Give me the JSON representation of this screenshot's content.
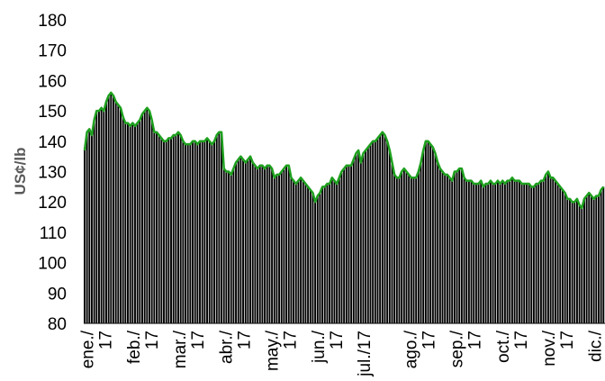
{
  "chart_data": {
    "type": "bar",
    "ylabel": "US¢/lb",
    "ylim": [
      80,
      180
    ],
    "yticks": [
      "80",
      "90",
      "100",
      "110",
      "120",
      "130",
      "140",
      "150",
      "160",
      "170",
      "180"
    ],
    "xticks": [
      "ene./ 17",
      "feb./ 17",
      "mar./ 17",
      "abr./ 17",
      "may./ 17",
      "jun./ 17",
      "jul./17",
      "ago./ 17",
      "sep./ 17",
      "oct./ 17",
      "nov./ 17",
      "dic./ 17"
    ],
    "grid": false,
    "legend": "none",
    "colors": {
      "bars": "#000000",
      "line": "#1ea01e",
      "axis_title": "#595959"
    },
    "series": [
      {
        "values": [
          137,
          143,
          144,
          142,
          147,
          150,
          150,
          151,
          150,
          153,
          155,
          156,
          155,
          153,
          152,
          151,
          148,
          146,
          146,
          145,
          146,
          145,
          146,
          147,
          149,
          150,
          151,
          150,
          147,
          143,
          143,
          142,
          141,
          140,
          140,
          141,
          141,
          142,
          142,
          143,
          142,
          140,
          139,
          139,
          139,
          140,
          140,
          139,
          140,
          140,
          140,
          141,
          140,
          139,
          140,
          142,
          143,
          143,
          131,
          130,
          130,
          129,
          131,
          133,
          134,
          135,
          134,
          133,
          134,
          135,
          133,
          132,
          131,
          132,
          132,
          131,
          132,
          132,
          131,
          128,
          129,
          129,
          130,
          131,
          132,
          132,
          128,
          127,
          126,
          127,
          128,
          127,
          126,
          125,
          124,
          123,
          120,
          122,
          123,
          125,
          125,
          126,
          126,
          128,
          127,
          126,
          128,
          130,
          131,
          132,
          132,
          132,
          134,
          136,
          137,
          133,
          136,
          137,
          138,
          139,
          140,
          140,
          141,
          142,
          143,
          142,
          140,
          137,
          133,
          129,
          128,
          128,
          130,
          131,
          130,
          129,
          128,
          128,
          128,
          130,
          133,
          137,
          140,
          140,
          139,
          138,
          136,
          133,
          131,
          130,
          129,
          129,
          128,
          127,
          130,
          130,
          131,
          131,
          128,
          127,
          127,
          127,
          126,
          126,
          126,
          127,
          125,
          126,
          126,
          127,
          126,
          126,
          127,
          126,
          127,
          126,
          127,
          127,
          128,
          127,
          127,
          127,
          126,
          126,
          126,
          126,
          125,
          125,
          126,
          126,
          127,
          127,
          129,
          130,
          128,
          128,
          127,
          126,
          125,
          124,
          123,
          121,
          121,
          120,
          120,
          121,
          119,
          118,
          121,
          122,
          123,
          122,
          121,
          122,
          122,
          124,
          125
        ]
      }
    ]
  }
}
